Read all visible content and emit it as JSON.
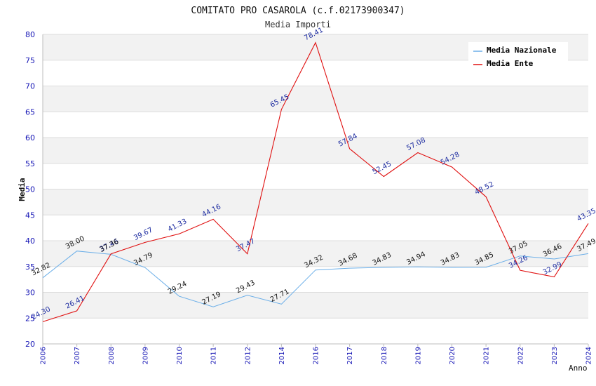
{
  "chart_data": {
    "type": "line",
    "title": "COMITATO PRO CASAROLA (c.f.02173900347)",
    "subtitle": "Media Importi",
    "xlabel": "Anno",
    "ylabel": "Media",
    "ylim": [
      20,
      80
    ],
    "ytick_step": 5,
    "grid": true,
    "legend_position": "top-right",
    "categories": [
      "2006",
      "2007",
      "2008",
      "2009",
      "2010",
      "2011",
      "2012",
      "2014",
      "2016",
      "2017",
      "2018",
      "2019",
      "2020",
      "2021",
      "2022",
      "2023",
      "2024"
    ],
    "series": [
      {
        "name": "Media Nazionale",
        "color": "#6aaee8",
        "label_color": "#111111",
        "values": [
          32.82,
          38.0,
          37.36,
          34.79,
          29.24,
          27.19,
          29.43,
          27.71,
          34.32,
          34.68,
          34.83,
          34.94,
          34.83,
          34.85,
          37.05,
          36.46,
          37.49
        ],
        "labels": [
          "32.82",
          "38.00",
          "37.36",
          "34.79",
          "29.24",
          "27.19",
          "29.43",
          "27.71",
          "34.32",
          "34.68",
          "34.83",
          "34.94",
          "34.83",
          "34.85",
          "37.05",
          "36.46",
          "37.49"
        ]
      },
      {
        "name": "Media Ente",
        "color": "#e01010",
        "label_color": "#1c2ba0",
        "values": [
          24.3,
          26.41,
          37.46,
          39.67,
          41.33,
          44.16,
          37.47,
          65.45,
          78.41,
          57.84,
          52.45,
          57.08,
          54.28,
          48.52,
          34.26,
          32.99,
          43.35
        ],
        "labels": [
          "24.30",
          "26.41",
          "37.46",
          "39.67",
          "41.33",
          "44.16",
          "37.47",
          "65.45",
          "78.41",
          "57.84",
          "52.45",
          "57.08",
          "54.28",
          "48.52",
          "34.26",
          "32.99",
          "43.35"
        ]
      }
    ],
    "colors": {
      "band": "#f2f2f2",
      "gridline": "#dcdcdc",
      "tick_text": "#1515b5"
    }
  }
}
